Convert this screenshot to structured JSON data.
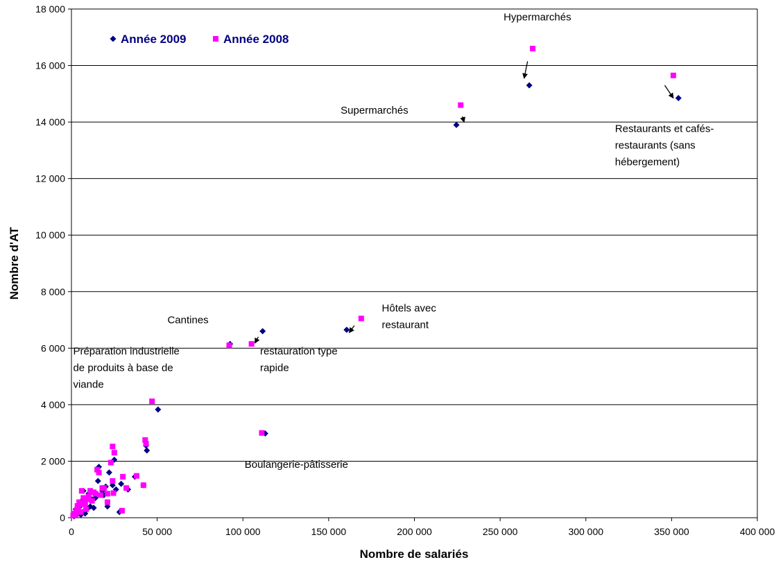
{
  "chart_data": {
    "type": "scatter",
    "title": "",
    "xlabel": "Nombre de salariés",
    "ylabel": "Nombre d'AT",
    "xlim": [
      0,
      400000
    ],
    "ylim": [
      0,
      18000
    ],
    "x_ticks": [
      0,
      50000,
      100000,
      150000,
      200000,
      250000,
      300000,
      350000,
      400000
    ],
    "x_tick_labels": [
      "0",
      "50 000",
      "100 000",
      "150 000",
      "200 000",
      "250 000",
      "300 000",
      "350 000",
      "400 000"
    ],
    "y_ticks": [
      0,
      2000,
      4000,
      6000,
      8000,
      10000,
      12000,
      14000,
      16000,
      18000
    ],
    "y_tick_labels": [
      "0",
      "2 000",
      "4 000",
      "6 000",
      "8 000",
      "10 000",
      "12 000",
      "14 000",
      "16 000",
      "18 000"
    ],
    "grid": "horizontal",
    "legend_position": "top-left",
    "series": [
      {
        "name": "Année 2009",
        "marker": "diamond",
        "color": "#000080",
        "points": [
          [
            224500,
            13900
          ],
          [
            267000,
            15300
          ],
          [
            354000,
            14850
          ],
          [
            160500,
            6650
          ],
          [
            111500,
            6600
          ],
          [
            92500,
            6150
          ],
          [
            113000,
            2980
          ],
          [
            50500,
            3830
          ],
          [
            44000,
            2380
          ],
          [
            43500,
            2550
          ],
          [
            25000,
            2050
          ],
          [
            24000,
            1150
          ],
          [
            26000,
            1000
          ],
          [
            22000,
            1600
          ],
          [
            29000,
            1200
          ],
          [
            33000,
            1000
          ],
          [
            42000,
            1150
          ],
          [
            37000,
            1450
          ],
          [
            16000,
            1800
          ],
          [
            15500,
            1300
          ],
          [
            18000,
            950
          ],
          [
            20000,
            1100
          ],
          [
            19000,
            800
          ],
          [
            14000,
            700
          ],
          [
            12000,
            650
          ],
          [
            11000,
            400
          ],
          [
            9000,
            300
          ],
          [
            8000,
            150
          ],
          [
            28000,
            200
          ],
          [
            21000,
            400
          ],
          [
            10000,
            850
          ],
          [
            6000,
            600
          ],
          [
            5000,
            400
          ],
          [
            4000,
            250
          ],
          [
            3000,
            150
          ],
          [
            2000,
            80
          ],
          [
            1500,
            50
          ],
          [
            7000,
            950
          ],
          [
            13000,
            350
          ],
          [
            6500,
            200
          ],
          [
            2500,
            300
          ],
          [
            5500,
            100
          ]
        ]
      },
      {
        "name": "Année 2008",
        "marker": "square",
        "color": "#ff00ff",
        "points": [
          [
            227000,
            14600
          ],
          [
            269000,
            16600
          ],
          [
            351000,
            15650
          ],
          [
            169000,
            7050
          ],
          [
            105000,
            6150
          ],
          [
            92000,
            6100
          ],
          [
            111000,
            3000
          ],
          [
            47000,
            4120
          ],
          [
            43000,
            2750
          ],
          [
            43500,
            2620
          ],
          [
            24000,
            2520
          ],
          [
            25000,
            2300
          ],
          [
            23000,
            1950
          ],
          [
            24000,
            1300
          ],
          [
            30000,
            1450
          ],
          [
            38000,
            1480
          ],
          [
            42000,
            1150
          ],
          [
            32000,
            1050
          ],
          [
            15000,
            1700
          ],
          [
            16000,
            1600
          ],
          [
            19000,
            1050
          ],
          [
            21000,
            850
          ],
          [
            17000,
            800
          ],
          [
            13000,
            900
          ],
          [
            11000,
            950
          ],
          [
            10000,
            750
          ],
          [
            9000,
            650
          ],
          [
            8000,
            500
          ],
          [
            29500,
            250
          ],
          [
            21000,
            550
          ],
          [
            24500,
            870
          ],
          [
            6000,
            950
          ],
          [
            7000,
            700
          ],
          [
            5000,
            500
          ],
          [
            4000,
            380
          ],
          [
            3000,
            250
          ],
          [
            2000,
            150
          ],
          [
            1000,
            80
          ],
          [
            12000,
            600
          ],
          [
            14000,
            850
          ],
          [
            18000,
            1050
          ],
          [
            8500,
            300
          ],
          [
            5500,
            200
          ],
          [
            2500,
            100
          ],
          [
            4500,
            550
          ],
          [
            3500,
            420
          ],
          [
            6500,
            480
          ]
        ]
      }
    ],
    "annotations": [
      {
        "lines": [
          "Hypermarchés"
        ],
        "x": 252000,
        "y": 17600
      },
      {
        "lines": [
          "Supermarchés"
        ],
        "x": 157000,
        "y": 14300
      },
      {
        "lines": [
          "Restaurants et cafés-",
          "restaurants (sans",
          "hébergement)"
        ],
        "x": 317000,
        "y": 13650
      },
      {
        "lines": [
          "Hôtels avec",
          "restaurant"
        ],
        "x": 181000,
        "y": 7300
      },
      {
        "lines": [
          "Cantines"
        ],
        "x": 56000,
        "y": 6880
      },
      {
        "lines": [
          "restauration type",
          "rapide"
        ],
        "x": 110000,
        "y": 5770
      },
      {
        "lines": [
          "Préparation industrielle",
          "de produits à base de",
          "viande"
        ],
        "x": 1000,
        "y": 5770
      },
      {
        "lines": [
          "Boulangerie-pâtisserie"
        ],
        "x": 101000,
        "y": 1760
      }
    ],
    "arrows": [
      {
        "from": [
          266000,
          16150
        ],
        "to": [
          264000,
          15550
        ]
      },
      {
        "from": [
          228000,
          14200
        ],
        "to": [
          229000,
          14000
        ]
      },
      {
        "from": [
          346000,
          15300
        ],
        "to": [
          351000,
          14850
        ]
      },
      {
        "from": [
          165000,
          6800
        ],
        "to": [
          162000,
          6550
        ]
      },
      {
        "from": [
          109000,
          6400
        ],
        "to": [
          107000,
          6180
        ]
      }
    ]
  }
}
